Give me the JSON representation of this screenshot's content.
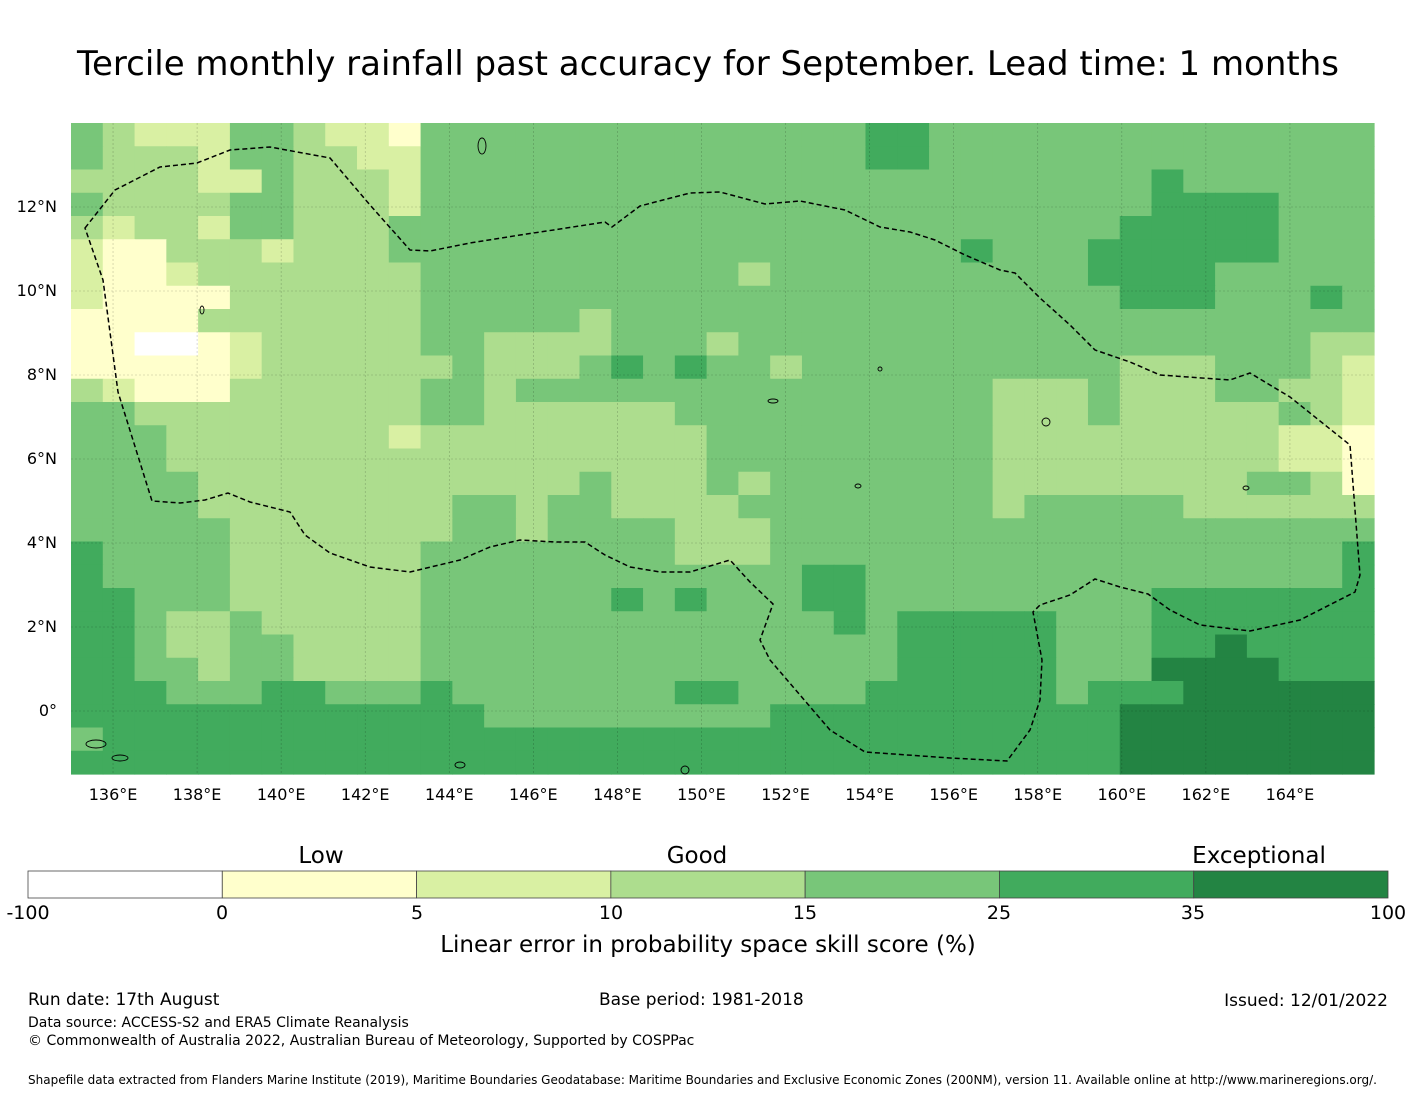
{
  "title": "Tercile monthly rainfall past accuracy for September. Lead time: 1 months",
  "map": {
    "lat_labels": [
      "12°N",
      "10°N",
      "8°N",
      "6°N",
      "4°N",
      "2°N",
      "0°"
    ],
    "lat_values": [
      12,
      10,
      8,
      6,
      4,
      2,
      0
    ],
    "lon_labels": [
      "136°E",
      "138°E",
      "140°E",
      "142°E",
      "144°E",
      "146°E",
      "148°E",
      "150°E",
      "152°E",
      "154°E",
      "156°E",
      "158°E",
      "160°E",
      "162°E",
      "164°E"
    ],
    "lon_values": [
      136,
      138,
      140,
      142,
      144,
      146,
      148,
      150,
      152,
      154,
      156,
      158,
      160,
      162,
      164
    ],
    "extent": {
      "lon_min": 135,
      "lon_max": 166,
      "lat_min": -1.5,
      "lat_max": 14
    },
    "grid_step_deg": 0.833,
    "eez_boundary_style": "dashed black line",
    "colors": [
      "#ffffff",
      "#ffffcc",
      "#d9f0a3",
      "#addd8e",
      "#78c679",
      "#41ab5d",
      "#238443"
    ],
    "grid_rows": [
      "43222443221444444444444445544444444444444",
      "43332443322444444444444445544444444444444",
      "33332243332444444444444444444444445444444",
      "43333443332444444444444444444444445555444",
      "32332443334444444444444444444444455555444",
      "21133323334444444444444444445444555555444",
      "21123333333444444444434444444444555544444",
      "21111333333444444444444444444444455544454",
      "11113333333444443444444444444444444444444",
      "11001233333443333444344444444444444444433",
      "11111233333343334545443444444444433344432",
      "32111333333443444444444444444333433344332",
      "44333333333443333334444444444333433333432",
      "44433333332333333333444444444333333333221",
      "44433333333333333333444444444333333333221",
      "44443333333333334333434444444333333334431",
      "44443333333344344333344444444344444333333",
      "44444333333344344443334444444444444444444",
      "54444333333444444443334444444444444444445",
      "54444333333444444444444554444444444444445",
      "55444333333444444545444554444444445555555",
      "55433433333444444444444454555554445555555",
      "55433443333444444444444444555554445565555",
      "55443443333444444444444444555554446666555",
      "55544455444544444445544445555554555666666",
      "55555555555554444444445555555555566666666",
      "45555555555555555555555555555555566666666",
      "55555555555555555555555555555555566666666"
    ]
  },
  "colorbar": {
    "categories": [
      "Low",
      "Good",
      "Exceptional"
    ],
    "ticks": [
      "-100",
      "0",
      "5",
      "10",
      "15",
      "25",
      "35",
      "100"
    ],
    "label": "Linear error in probability space skill score (%)"
  },
  "footer": {
    "run_date": "Run date: 17th August",
    "base_period": "Base period: 1981-2018",
    "issued": "Issued: 12/01/2022",
    "data_source": "Data source: ACCESS-S2 and ERA5 Climate Reanalysis",
    "copyright": "© Commonwealth of Australia 2022, Australian Bureau of Meteorology, Supported by COSPPac",
    "shapefile": "Shapefile data extracted from Flanders Marine Institute (2019), Maritime Boundaries Geodatabase: Maritime Boundaries and Exclusive Economic Zones (200NM), version 11. Available online at http://www.marineregions.org/."
  }
}
